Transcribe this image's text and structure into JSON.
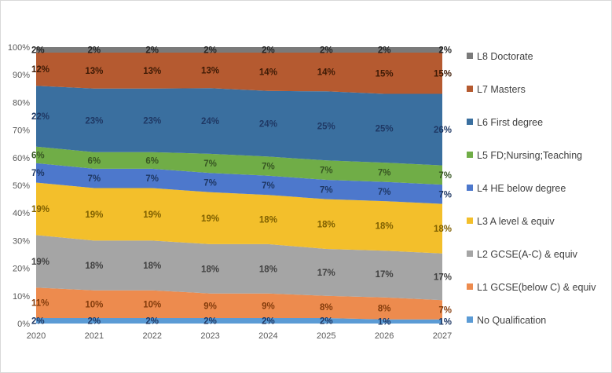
{
  "chart_data": {
    "type": "area",
    "stacked_percent": true,
    "x": [
      "2020",
      "2021",
      "2022",
      "2023",
      "2024",
      "2025",
      "2026",
      "2027"
    ],
    "ylim": [
      0,
      100
    ],
    "ytick_labels": [
      "0%",
      "10%",
      "20%",
      "30%",
      "40%",
      "50%",
      "60%",
      "70%",
      "80%",
      "90%",
      "100%"
    ],
    "legend_position": "right",
    "grid": false,
    "series": [
      {
        "name": "No Qualification",
        "color": "#5b9bd5",
        "label_color": "#1f3864",
        "values": [
          2,
          2,
          2,
          2,
          2,
          2,
          1.5,
          1.5
        ],
        "labels": [
          "2%",
          "2%",
          "2%",
          "2%",
          "2%",
          "2%",
          "1%",
          "1%"
        ]
      },
      {
        "name": "L1 GCSE(below C) & equiv",
        "color": "#ed8b4e",
        "label_color": "#843c0c",
        "values": [
          11,
          10,
          10,
          9,
          9,
          8,
          8,
          7
        ],
        "labels": [
          "11%",
          "10%",
          "10%",
          "9%",
          "9%",
          "8%",
          "8%",
          "7%"
        ]
      },
      {
        "name": "L2 GCSE(A-C) & equiv",
        "color": "#a5a5a5",
        "label_color": "#404040",
        "values": [
          19,
          18,
          18,
          18,
          18,
          17,
          17,
          17
        ],
        "labels": [
          "19%",
          "18%",
          "18%",
          "18%",
          "18%",
          "17%",
          "17%",
          "17%"
        ]
      },
      {
        "name": "L3 A level & equiv",
        "color": "#f3bf2b",
        "label_color": "#7f6000",
        "values": [
          19,
          19,
          19,
          19,
          18,
          18,
          18,
          18
        ],
        "labels": [
          "19%",
          "19%",
          "19%",
          "19%",
          "18%",
          "18%",
          "18%",
          "18%"
        ]
      },
      {
        "name": "L4 HE below degree",
        "color": "#4d78cc",
        "label_color": "#1f3864",
        "values": [
          7,
          7,
          7,
          7,
          7,
          7,
          7,
          7
        ],
        "labels": [
          "7%",
          "7%",
          "7%",
          "7%",
          "7%",
          "7%",
          "7%",
          "7%"
        ]
      },
      {
        "name": "L5 FD;Nursing;Teaching",
        "color": "#70ad47",
        "label_color": "#375623",
        "values": [
          6,
          6,
          6,
          7,
          7,
          7,
          7,
          7
        ],
        "labels": [
          "6%",
          "6%",
          "6%",
          "7%",
          "7%",
          "7%",
          "7%",
          "7%"
        ]
      },
      {
        "name": "L6 First degree",
        "color": "#3a6f9f",
        "label_color": "#1f3864",
        "values": [
          22,
          23,
          23,
          24,
          24,
          25,
          25,
          26
        ],
        "labels": [
          "22%",
          "23%",
          "23%",
          "24%",
          "24%",
          "25%",
          "25%",
          "26%"
        ]
      },
      {
        "name": "L7 Masters",
        "color": "#b55a30",
        "label_color": "#3d1a05",
        "values": [
          12,
          13,
          13,
          13,
          14,
          14,
          15,
          15
        ],
        "labels": [
          "12%",
          "13%",
          "13%",
          "13%",
          "14%",
          "14%",
          "15%",
          "15%"
        ]
      },
      {
        "name": "L8 Doctorate",
        "color": "#7a7a7a",
        "label_color": "#262626",
        "values": [
          2,
          2,
          2,
          2,
          2,
          2,
          2,
          2
        ],
        "labels": [
          "2%",
          "2%",
          "2%",
          "2%",
          "2%",
          "2%",
          "2%",
          "2%"
        ]
      }
    ]
  }
}
